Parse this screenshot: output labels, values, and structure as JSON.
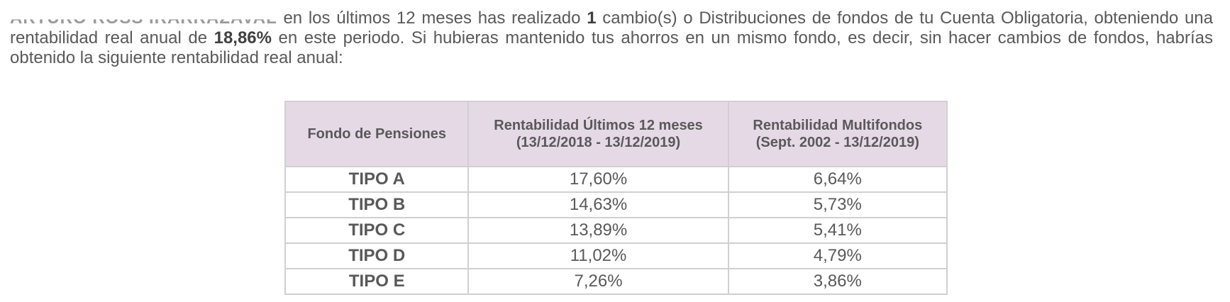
{
  "intro": {
    "name_redacted": "ARTURO ROSS IRARRAZAVAL",
    "text_1": " en los últimos 12 meses has realizado ",
    "changes_count": "1",
    "text_2": " cambio(s) o Distribuciones de fondos de tu Cuenta Obligatoria, obteniendo una rentabilidad real anual de ",
    "real_return": "18,86%",
    "text_3": " en este periodo. Si hubieras mantenido tus ahorros en un mismo fondo, es decir, sin hacer cambios de fondos, habrías obtenido la siguiente rentabilidad real anual:"
  },
  "table": {
    "headers": {
      "fund": "Fondo de Pensiones",
      "last12_line1": "Rentabilidad Últimos 12 meses",
      "last12_line2": "(13/12/2018 - 13/12/2019)",
      "multi_line1": "Rentabilidad Multifondos",
      "multi_line2": "(Sept. 2002 - 13/12/2019)"
    },
    "rows": [
      {
        "fund": "TIPO A",
        "last12": "17,60%",
        "multi": "6,64%"
      },
      {
        "fund": "TIPO B",
        "last12": "14,63%",
        "multi": "5,73%"
      },
      {
        "fund": "TIPO C",
        "last12": "13,89%",
        "multi": "5,41%"
      },
      {
        "fund": "TIPO D",
        "last12": "11,02%",
        "multi": "4,79%"
      },
      {
        "fund": "TIPO E",
        "last12": "7,26%",
        "multi": "3,86%"
      }
    ]
  },
  "colors": {
    "header_bg": "#e6d9e6",
    "text": "#595959",
    "border": "#d0d0d0"
  }
}
